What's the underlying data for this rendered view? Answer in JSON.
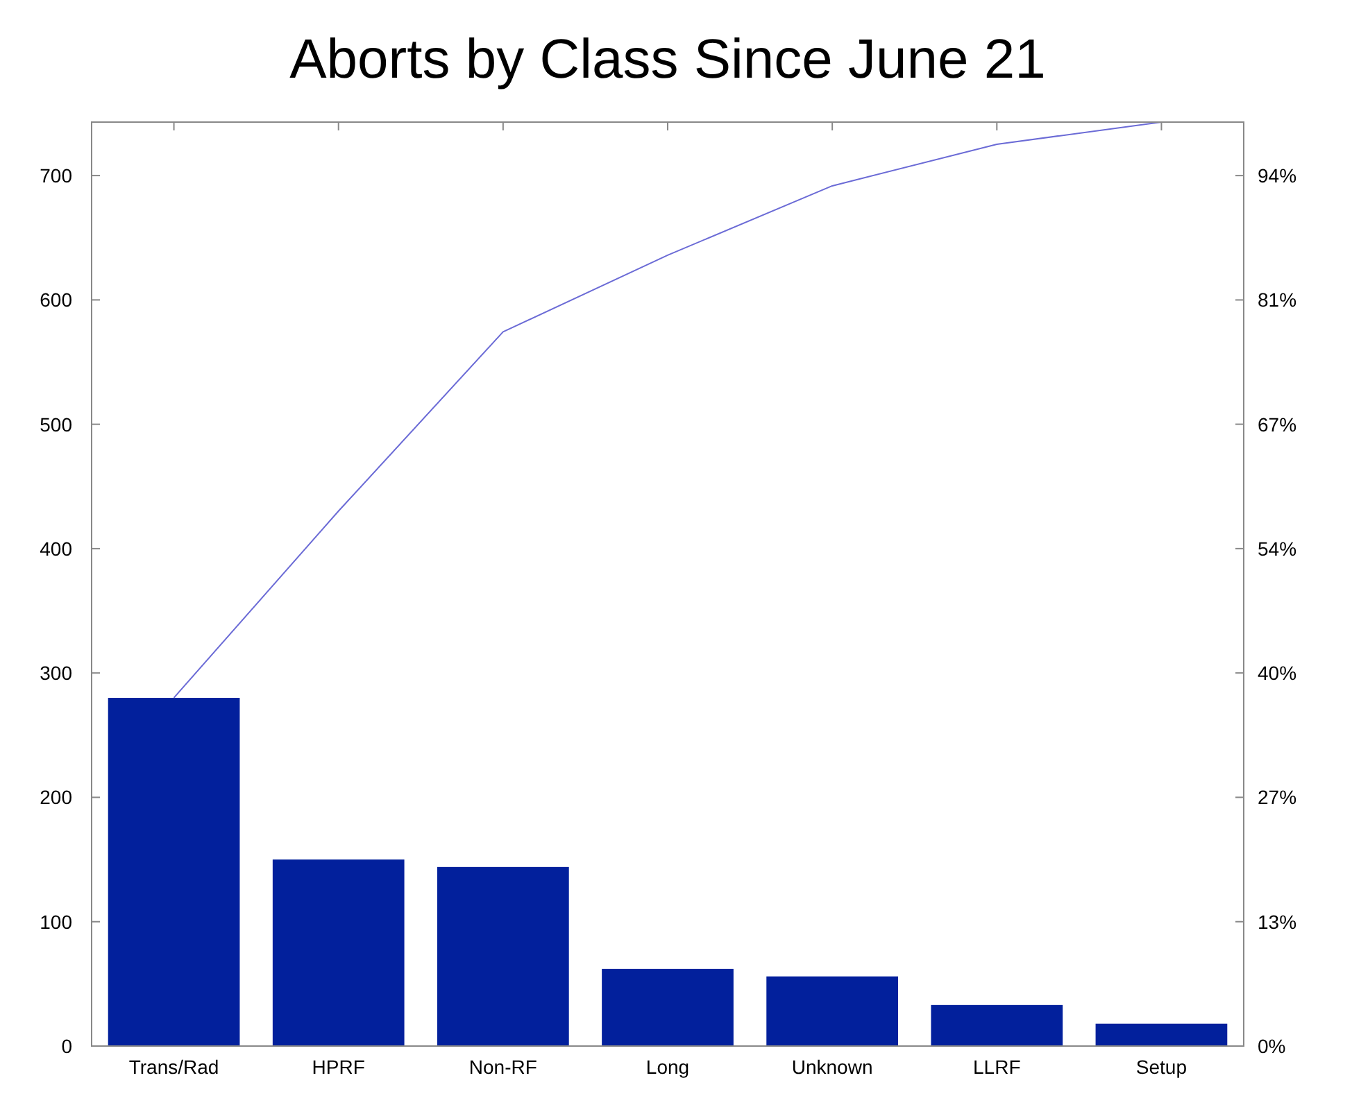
{
  "chart_data": {
    "type": "bar",
    "title": "Aborts by Class Since June 21",
    "categories": [
      "Trans/Rad",
      "HPRF",
      "Non-RF",
      "Long",
      "Unknown",
      "LLRF",
      "Setup"
    ],
    "series": [
      {
        "color": "#02209c",
        "values": [
          280,
          150,
          144,
          62,
          56,
          33,
          18
        ]
      },
      {
        "type": "line",
        "axis": "y2",
        "color": "#6b6bd6",
        "values": [
          37.7,
          57.9,
          77.3,
          85.6,
          93.1,
          97.6,
          100
        ]
      }
    ],
    "ylim": [
      0,
      743
    ],
    "yticks": [
      0,
      100,
      200,
      300,
      400,
      500,
      600,
      700
    ],
    "y2lim": [
      0,
      100
    ],
    "y2ticks": [
      {
        "value": 0,
        "label": "0%"
      },
      {
        "value": 13.46,
        "label": "13%"
      },
      {
        "value": 26.92,
        "label": "27%"
      },
      {
        "value": 40.38,
        "label": "40%"
      },
      {
        "value": 53.84,
        "label": "54%"
      },
      {
        "value": 67.3,
        "label": "67%"
      },
      {
        "value": 80.75,
        "label": "81%"
      },
      {
        "value": 94.21,
        "label": "94%"
      }
    ],
    "grid": false,
    "marker": "none",
    "line_style": "solid"
  }
}
